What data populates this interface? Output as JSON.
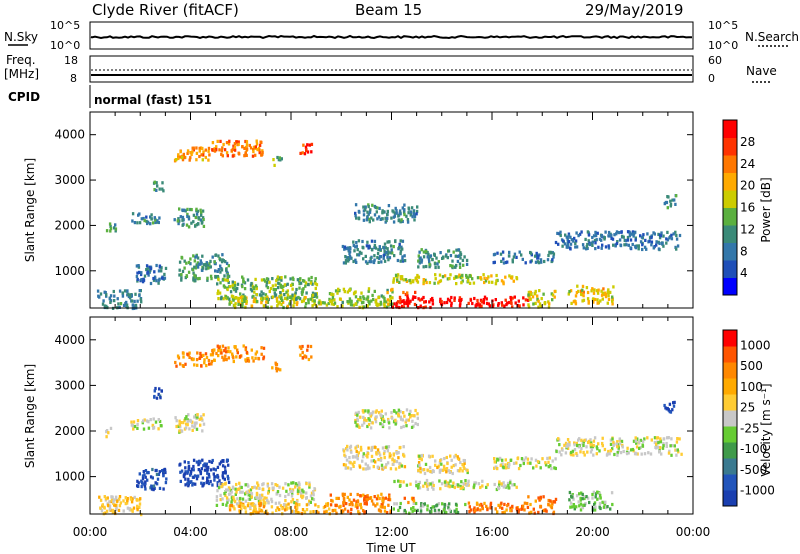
{
  "header": {
    "title": "Clyde River (fitACF)",
    "beam": "Beam 15",
    "date": "29/May/2019"
  },
  "status_panels": {
    "nsky": {
      "label": "N.Sky",
      "left_ticks": [
        "10^5",
        "10^0"
      ],
      "right_ticks": [
        "10^5",
        "10^0"
      ],
      "right_label": "N.Search"
    },
    "freq": {
      "label_line1": "Freq.",
      "label_line2": "[MHz]",
      "left_ticks": [
        "18",
        "8"
      ],
      "right_ticks": [
        "60",
        "0"
      ],
      "right_label": "Nave"
    },
    "cpid": {
      "label": "CPID",
      "text": "normal (fast) 151"
    }
  },
  "chart_data": [
    {
      "type": "heatmap",
      "name": "power-panel",
      "ylabel": "Slant Range [km]",
      "xlabel": "",
      "xlim": [
        0,
        24
      ],
      "ylim": [
        180,
        4500
      ],
      "x_ticks": [
        "00:00",
        "04:00",
        "08:00",
        "12:00",
        "16:00",
        "20:00",
        "00:00"
      ],
      "y_ticks": [
        1000,
        2000,
        3000,
        4000
      ],
      "colorbar": {
        "label": "Power [dB]",
        "ticks": [
          "4",
          "8",
          "12",
          "16",
          "20",
          "24",
          "28"
        ],
        "colors": [
          "#0000ff",
          "#1f4fb8",
          "#3377aa",
          "#3a8a78",
          "#5bb040",
          "#cccc00",
          "#ffaa00",
          "#ff7700",
          "#ff3300",
          "#ff0000"
        ]
      },
      "regions": [
        {
          "t0": 0.6,
          "t1": 1.0,
          "r0": 1900,
          "r1": 2100,
          "c": 0.35
        },
        {
          "t0": 1.6,
          "t1": 2.8,
          "r0": 2050,
          "r1": 2300,
          "c": 0.3
        },
        {
          "t0": 2.5,
          "t1": 2.9,
          "r0": 2750,
          "r1": 3000,
          "c": 0.4
        },
        {
          "t0": 3.3,
          "t1": 4.5,
          "r0": 2000,
          "r1": 2400,
          "c": 0.35
        },
        {
          "t0": 3.3,
          "t1": 4.8,
          "r0": 3450,
          "r1": 3750,
          "c": 0.7
        },
        {
          "t0": 4.8,
          "t1": 6.9,
          "r0": 3550,
          "r1": 3900,
          "c": 0.75
        },
        {
          "t0": 7.2,
          "t1": 7.6,
          "r0": 3350,
          "r1": 3550,
          "c": 0.45
        },
        {
          "t0": 8.3,
          "t1": 8.8,
          "r0": 3600,
          "r1": 3900,
          "c": 0.9
        },
        {
          "t0": 1.8,
          "t1": 3.0,
          "r0": 750,
          "r1": 1200,
          "c": 0.25
        },
        {
          "t0": 3.5,
          "t1": 5.5,
          "r0": 800,
          "r1": 1400,
          "c": 0.35
        },
        {
          "t0": 5.0,
          "t1": 9.0,
          "r0": 400,
          "r1": 900,
          "c": 0.45
        },
        {
          "t0": 5.5,
          "t1": 9.5,
          "r0": 220,
          "r1": 450,
          "c": 0.55
        },
        {
          "t0": 9.5,
          "t1": 12.0,
          "r0": 220,
          "r1": 650,
          "c": 0.5
        },
        {
          "t0": 12.0,
          "t1": 14.9,
          "r0": 220,
          "r1": 450,
          "c": 0.97
        },
        {
          "t0": 12.4,
          "t1": 13.0,
          "r0": 450,
          "r1": 560,
          "c": 0.85
        },
        {
          "t0": 15.0,
          "t1": 17.4,
          "r0": 240,
          "r1": 460,
          "c": 0.95
        },
        {
          "t0": 12.0,
          "t1": 17.0,
          "r0": 750,
          "r1": 950,
          "c": 0.55
        },
        {
          "t0": 10.0,
          "t1": 12.5,
          "r0": 1200,
          "r1": 1700,
          "c": 0.3
        },
        {
          "t0": 13.0,
          "t1": 15.0,
          "r0": 1100,
          "r1": 1500,
          "c": 0.35
        },
        {
          "t0": 17.4,
          "t1": 18.5,
          "r0": 220,
          "r1": 600,
          "c": 0.55
        },
        {
          "t0": 19.0,
          "t1": 20.8,
          "r0": 300,
          "r1": 700,
          "c": 0.6
        },
        {
          "t0": 16.0,
          "t1": 18.5,
          "r0": 1200,
          "r1": 1450,
          "c": 0.25
        },
        {
          "t0": 18.5,
          "t1": 23.5,
          "r0": 1500,
          "r1": 1900,
          "c": 0.25
        },
        {
          "t0": 22.8,
          "t1": 23.3,
          "r0": 2400,
          "r1": 2700,
          "c": 0.3
        },
        {
          "t0": 10.5,
          "t1": 13.0,
          "r0": 2100,
          "r1": 2500,
          "c": 0.3
        },
        {
          "t0": 0.2,
          "t1": 2.0,
          "r0": 200,
          "r1": 600,
          "c": 0.3
        }
      ]
    },
    {
      "type": "heatmap",
      "name": "velocity-panel",
      "ylabel": "Slant Range [km]",
      "xlabel": "Time UT",
      "xlim": [
        0,
        24
      ],
      "ylim": [
        180,
        4500
      ],
      "x_ticks": [
        "00:00",
        "04:00",
        "08:00",
        "12:00",
        "16:00",
        "20:00",
        "00:00"
      ],
      "y_ticks": [
        1000,
        2000,
        3000,
        4000
      ],
      "colorbar": {
        "label": "Velocity [m s⁻¹]",
        "ticks": [
          "1000",
          "500",
          "100",
          "25",
          "-25",
          "-100",
          "-500",
          "-1000"
        ],
        "colors": [
          "#1a3fb0",
          "#2255bb",
          "#3a7a90",
          "#3f9a4a",
          "#66cc33",
          "#c8c8c8",
          "#ffcc33",
          "#ffaa00",
          "#ff8800",
          "#ff5500",
          "#ff0000"
        ]
      },
      "regions": [
        {
          "t0": 0.6,
          "t1": 1.0,
          "r0": 1900,
          "r1": 2100,
          "c": 0.5
        },
        {
          "t0": 1.6,
          "t1": 2.8,
          "r0": 2050,
          "r1": 2300,
          "c": 0.5
        },
        {
          "t0": 2.5,
          "t1": 2.9,
          "r0": 2750,
          "r1": 3000,
          "c": 0.1
        },
        {
          "t0": 3.3,
          "t1": 4.5,
          "r0": 2000,
          "r1": 2400,
          "c": 0.5
        },
        {
          "t0": 3.3,
          "t1": 4.8,
          "r0": 3450,
          "r1": 3750,
          "c": 0.75
        },
        {
          "t0": 4.8,
          "t1": 6.9,
          "r0": 3550,
          "r1": 3900,
          "c": 0.75
        },
        {
          "t0": 7.2,
          "t1": 7.6,
          "r0": 3350,
          "r1": 3550,
          "c": 0.75
        },
        {
          "t0": 8.3,
          "t1": 8.8,
          "r0": 3600,
          "r1": 3900,
          "c": 0.8
        },
        {
          "t0": 1.8,
          "t1": 3.0,
          "r0": 750,
          "r1": 1200,
          "c": 0.1
        },
        {
          "t0": 3.5,
          "t1": 5.5,
          "r0": 800,
          "r1": 1400,
          "c": 0.05
        },
        {
          "t0": 5.0,
          "t1": 9.0,
          "r0": 400,
          "r1": 900,
          "c": 0.5
        },
        {
          "t0": 5.5,
          "t1": 9.5,
          "r0": 220,
          "r1": 450,
          "c": 0.65
        },
        {
          "t0": 9.5,
          "t1": 12.0,
          "r0": 220,
          "r1": 650,
          "c": 0.78
        },
        {
          "t0": 12.0,
          "t1": 14.9,
          "r0": 220,
          "r1": 450,
          "c": 0.4
        },
        {
          "t0": 12.4,
          "t1": 13.0,
          "r0": 450,
          "r1": 560,
          "c": 0.78
        },
        {
          "t0": 15.0,
          "t1": 17.4,
          "r0": 240,
          "r1": 460,
          "c": 0.8
        },
        {
          "t0": 12.0,
          "t1": 17.0,
          "r0": 750,
          "r1": 950,
          "c": 0.5
        },
        {
          "t0": 10.0,
          "t1": 12.5,
          "r0": 1200,
          "r1": 1700,
          "c": 0.55
        },
        {
          "t0": 13.0,
          "t1": 15.0,
          "r0": 1100,
          "r1": 1500,
          "c": 0.55
        },
        {
          "t0": 17.4,
          "t1": 18.5,
          "r0": 220,
          "r1": 600,
          "c": 0.78
        },
        {
          "t0": 19.0,
          "t1": 20.8,
          "r0": 300,
          "r1": 700,
          "c": 0.4
        },
        {
          "t0": 16.0,
          "t1": 18.5,
          "r0": 1200,
          "r1": 1450,
          "c": 0.5
        },
        {
          "t0": 18.5,
          "t1": 23.5,
          "r0": 1500,
          "r1": 1900,
          "c": 0.5
        },
        {
          "t0": 22.8,
          "t1": 23.3,
          "r0": 2400,
          "r1": 2700,
          "c": 0.1
        },
        {
          "t0": 10.5,
          "t1": 13.0,
          "r0": 2100,
          "r1": 2500,
          "c": 0.5
        },
        {
          "t0": 0.2,
          "t1": 2.0,
          "r0": 200,
          "r1": 600,
          "c": 0.6
        }
      ]
    }
  ]
}
